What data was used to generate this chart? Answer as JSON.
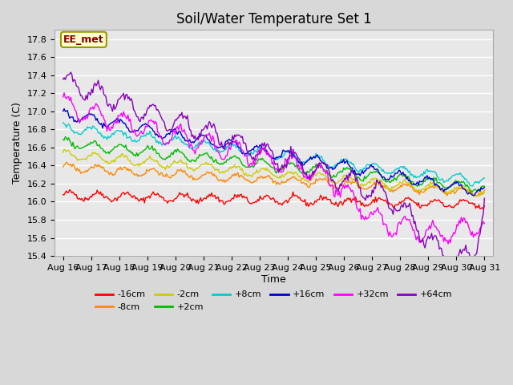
{
  "title": "Soil/Water Temperature Set 1",
  "xlabel": "Time",
  "ylabel": "Temperature (C)",
  "ylim": [
    15.4,
    17.9
  ],
  "background_color": "#d8d8d8",
  "plot_bg": "#e8e8e8",
  "grid_color": "#ffffff",
  "annotation_text": "EE_met",
  "annotation_bg": "#ffffcc",
  "annotation_border": "#999900",
  "annotation_text_color": "#880000",
  "series": [
    {
      "label": "-16cm",
      "color": "#ff0000"
    },
    {
      "label": "-8cm",
      "color": "#ff8800"
    },
    {
      "label": "-2cm",
      "color": "#cccc00"
    },
    {
      "label": "+2cm",
      "color": "#00bb00"
    },
    {
      "label": "+8cm",
      "color": "#00cccc"
    },
    {
      "label": "+16cm",
      "color": "#0000cc"
    },
    {
      "label": "+32cm",
      "color": "#ff00ff"
    },
    {
      "label": "+64cm",
      "color": "#8800bb"
    }
  ],
  "xtick_labels": [
    "Aug 16",
    "Aug 17",
    "Aug 18",
    "Aug 19",
    "Aug 20",
    "Aug 21",
    "Aug 22",
    "Aug 23",
    "Aug 24",
    "Aug 25",
    "Aug 26",
    "Aug 27",
    "Aug 28",
    "Aug 29",
    "Aug 30",
    "Aug 31"
  ],
  "title_fontsize": 12,
  "axis_fontsize": 9,
  "tick_fontsize": 8
}
